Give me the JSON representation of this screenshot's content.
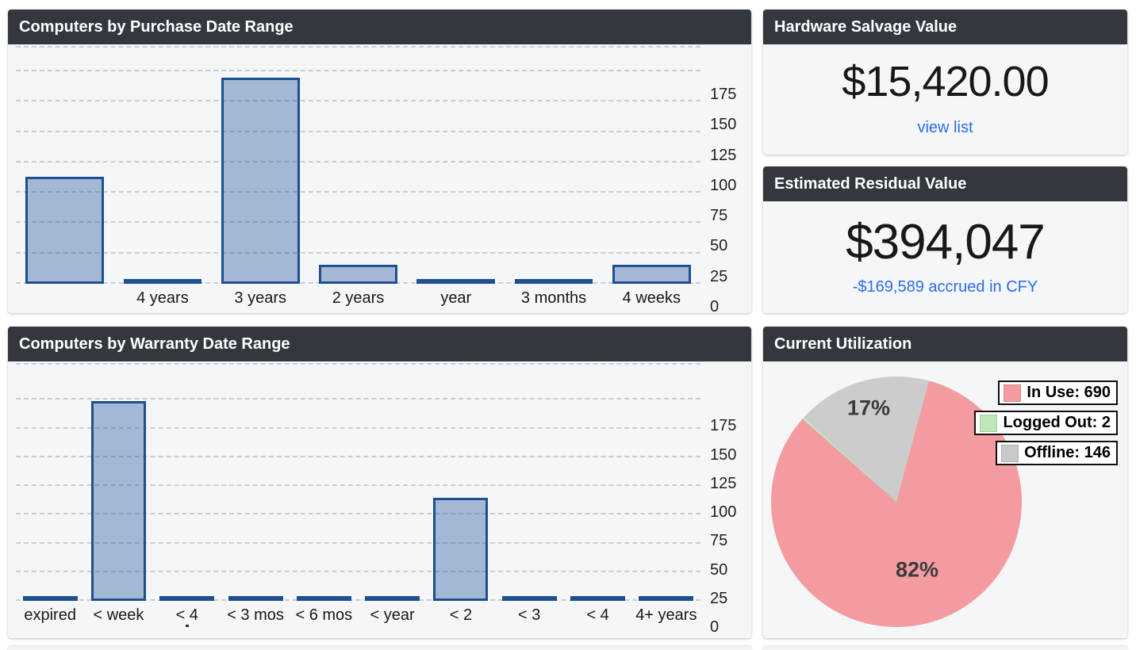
{
  "colors": {
    "header_bg": "#33383e",
    "card_bg": "#f5f6f8",
    "link_blue": "#2b6cf0",
    "bar_fill": "rgba(31,84,153,0.38)",
    "bar_border": "#1d5093",
    "gridline": "#c9cdd2"
  },
  "cards": {
    "purchase": {
      "title": "Computers by Purchase Date Range"
    },
    "salvage": {
      "title": "Hardware Salvage Value",
      "amount": "$15,420.00",
      "link_label": "view list"
    },
    "residual": {
      "title": "Estimated Residual Value",
      "amount": "$394,047",
      "link_label": "-$169,589 accrued in CFY"
    },
    "warranty": {
      "title": "Computers by Warranty Date Range"
    },
    "utilization": {
      "title": "Current Utilization"
    }
  },
  "chart_data": [
    {
      "id": "purchase",
      "type": "bar",
      "title": "Computers by Purchase Date Range",
      "categories": [
        "",
        "4 years",
        "3 years",
        "2 years",
        "year",
        "3 months",
        "4 weeks"
      ],
      "values": [
        88,
        2,
        170,
        16,
        2,
        2,
        16
      ],
      "xlabel": "",
      "ylabel": "",
      "ylim": [
        0,
        175
      ],
      "yticks": [
        0,
        25,
        50,
        75,
        100,
        125,
        150,
        175
      ],
      "grid": "horizontal-dashed",
      "axis_side": "right",
      "scale_max": 196
    },
    {
      "id": "warranty",
      "type": "bar",
      "title": "Computers by Warranty Date Range",
      "categories": [
        "expired",
        "< week",
        "< 4",
        "< 3 mos",
        "< 6 mos",
        "< year",
        "< 2",
        "< 3",
        "< 4",
        "4+ years"
      ],
      "values": [
        2,
        174,
        2,
        2,
        2,
        2,
        90,
        2,
        2,
        2
      ],
      "clipped_label_index": 2,
      "xlabel": "",
      "ylabel": "",
      "ylim": [
        0,
        175
      ],
      "yticks": [
        0,
        25,
        50,
        75,
        100,
        125,
        150,
        175
      ],
      "grid": "horizontal-dashed",
      "axis_side": "right",
      "scale_max": 207
    },
    {
      "id": "utilization",
      "type": "pie",
      "title": "Current Utilization",
      "start_angle": 15,
      "slices": [
        {
          "label": "In Use",
          "value": 690,
          "pct_label": "82%",
          "color": "#f49ba0",
          "label_r": 0.57
        },
        {
          "label": "Logged Out",
          "value": 2,
          "pct_label": "",
          "color": "#bfe8ba",
          "label_r": 0.8
        },
        {
          "label": "Offline",
          "value": 146,
          "pct_label": "17%",
          "color": "#cccccc",
          "label_r": 0.78
        }
      ],
      "legend": [
        {
          "label": "In Use: 690",
          "color": "#f49ba0"
        },
        {
          "label": "Logged Out: 2",
          "color": "#bfe8ba"
        },
        {
          "label": "Offline: 146",
          "color": "#c9c9c9"
        }
      ],
      "legend_position": "top-right"
    }
  ]
}
